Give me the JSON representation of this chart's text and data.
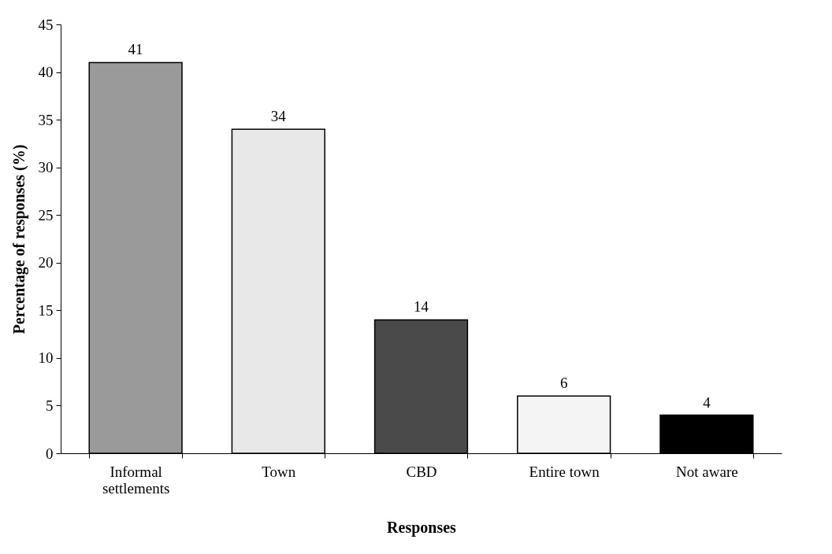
{
  "chart_data": {
    "type": "bar",
    "xlabel": "Responses",
    "ylabel": "Percentage of responses (%)",
    "categories": [
      "Informal settlements",
      "Town",
      "CBD",
      "Entire town",
      "Not aware"
    ],
    "values": [
      41,
      34,
      14,
      6,
      4
    ],
    "colors": [
      "#9a9a9a",
      "#e8e8e8",
      "#4a4a4a",
      "#f4f4f4",
      "#000000"
    ],
    "ylim": [
      0,
      45
    ],
    "yticks": [
      0,
      5,
      10,
      15,
      20,
      25,
      30,
      35,
      40,
      45
    ],
    "grid": false,
    "data_labels": true
  }
}
